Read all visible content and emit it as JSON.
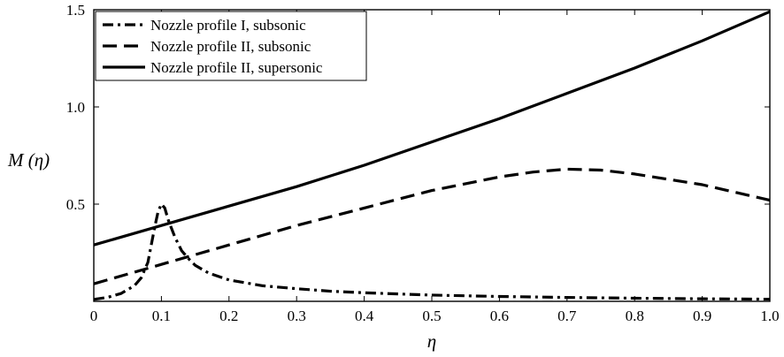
{
  "chart_data": {
    "type": "line",
    "title": "",
    "xlabel": "η",
    "ylabel": "M (η)",
    "xlim": [
      0,
      1.0
    ],
    "ylim": [
      0,
      1.5
    ],
    "x_ticks": [
      {
        "value": 0,
        "label": "0"
      },
      {
        "value": 0.1,
        "label": "0.1"
      },
      {
        "value": 0.2,
        "label": "0.2"
      },
      {
        "value": 0.3,
        "label": "0.3"
      },
      {
        "value": 0.4,
        "label": "0.4"
      },
      {
        "value": 0.5,
        "label": "0.5"
      },
      {
        "value": 0.6,
        "label": "0.6"
      },
      {
        "value": 0.7,
        "label": "0.7"
      },
      {
        "value": 0.8,
        "label": "0.8"
      },
      {
        "value": 0.9,
        "label": "0.9"
      },
      {
        "value": 1.0,
        "label": "1.0"
      }
    ],
    "y_ticks": [
      {
        "value": 0.5,
        "label": "0.5"
      },
      {
        "value": 1.0,
        "label": "1.0"
      },
      {
        "value": 1.5,
        "label": "1.5"
      }
    ],
    "grid": false,
    "legend_position": "top-left",
    "series": [
      {
        "name": "Nozzle profile I, subsonic",
        "line_style": "dash-dot",
        "color": "#000000",
        "x": [
          0.0,
          0.02,
          0.04,
          0.06,
          0.07,
          0.08,
          0.085,
          0.09,
          0.095,
          0.1,
          0.105,
          0.11,
          0.12,
          0.13,
          0.14,
          0.15,
          0.17,
          0.2,
          0.25,
          0.3,
          0.35,
          0.4,
          0.5,
          0.6,
          0.7,
          0.8,
          0.9,
          1.0
        ],
        "y": [
          0.01,
          0.02,
          0.04,
          0.08,
          0.12,
          0.2,
          0.29,
          0.38,
          0.46,
          0.5,
          0.48,
          0.42,
          0.33,
          0.26,
          0.22,
          0.185,
          0.145,
          0.11,
          0.08,
          0.065,
          0.052,
          0.044,
          0.032,
          0.025,
          0.02,
          0.016,
          0.013,
          0.011
        ]
      },
      {
        "name": "Nozzle profile II, subsonic",
        "line_style": "dashed",
        "color": "#000000",
        "x": [
          0.0,
          0.1,
          0.2,
          0.3,
          0.4,
          0.5,
          0.6,
          0.65,
          0.7,
          0.75,
          0.8,
          0.9,
          1.0
        ],
        "y": [
          0.09,
          0.19,
          0.29,
          0.39,
          0.48,
          0.57,
          0.64,
          0.665,
          0.68,
          0.675,
          0.655,
          0.6,
          0.52
        ]
      },
      {
        "name": "Nozzle profile II, supersonic",
        "line_style": "solid",
        "color": "#000000",
        "x": [
          0.0,
          0.1,
          0.2,
          0.3,
          0.4,
          0.5,
          0.6,
          0.7,
          0.8,
          0.9,
          1.0
        ],
        "y": [
          0.29,
          0.39,
          0.49,
          0.59,
          0.7,
          0.82,
          0.94,
          1.07,
          1.2,
          1.34,
          1.49
        ]
      }
    ]
  }
}
